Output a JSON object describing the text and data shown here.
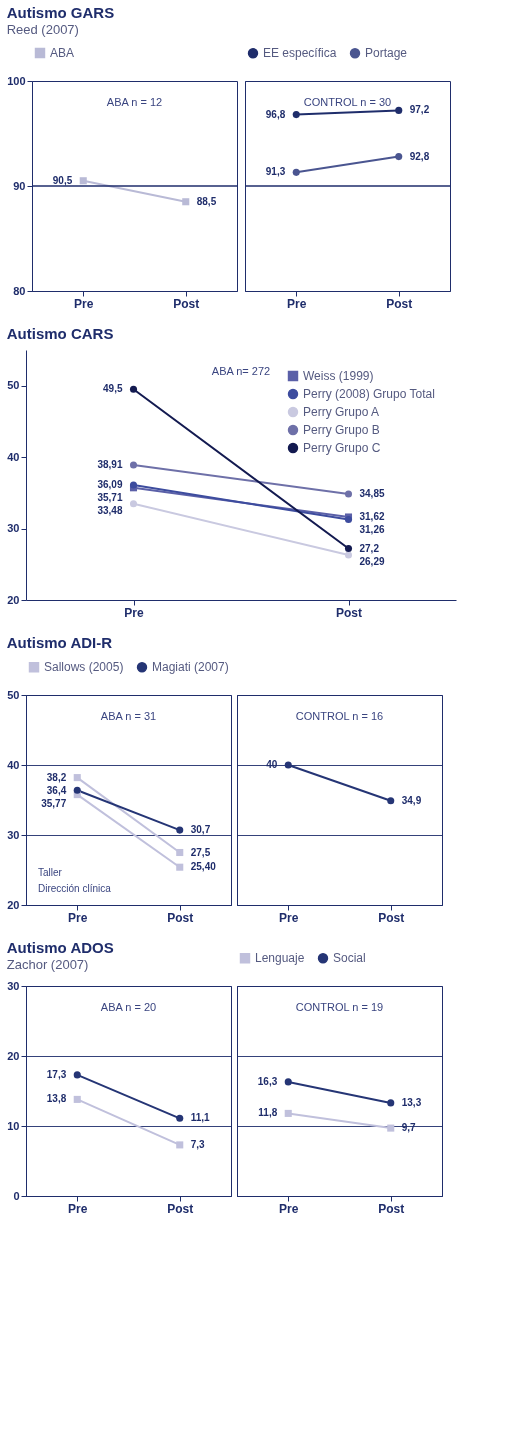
{
  "chart_data": [
    {
      "type": "line",
      "title": "Autismo GARS",
      "subtitle": "Reed (2007)",
      "categories": [
        "Pre",
        "Post"
      ],
      "ylim": [
        80,
        100
      ],
      "yticks": [
        80,
        90,
        100
      ],
      "ref_lines": [
        {
          "axis": "y",
          "value": 90
        }
      ],
      "legend": "top",
      "annotations": [
        "ABA n = 12"
      ],
      "series": [
        {
          "name": "ABA",
          "color": "#b9bad6",
          "marker": "square",
          "values": [
            90.5,
            88.5
          ],
          "value_labels": [
            "90,5",
            "88,5"
          ]
        }
      ]
    },
    {
      "type": "line",
      "categories": [
        "Pre",
        "Post"
      ],
      "ylim": [
        80,
        100
      ],
      "yticks": [
        80,
        90,
        100
      ],
      "ref_lines": [
        {
          "axis": "y",
          "value": 90
        }
      ],
      "legend": "top",
      "tick_labels": "x",
      "annotations": [
        "CONTROL n = 30"
      ],
      "series": [
        {
          "name": "EE específica",
          "color": "#1f2d6b",
          "marker": "circle",
          "values": [
            96.8,
            97.2
          ],
          "value_labels": [
            "96,8",
            "97,2"
          ]
        },
        {
          "name": "Portage",
          "color": "#4a5590",
          "marker": "circle",
          "values": [
            91.3,
            92.8
          ],
          "value_labels": [
            "91,3",
            "92,8"
          ]
        }
      ]
    },
    {
      "type": "line",
      "title": "Autismo CARS",
      "categories": [
        "Pre",
        "Post"
      ],
      "ylim": [
        20,
        55
      ],
      "yticks": [
        20,
        30,
        40,
        50
      ],
      "legend": "top right",
      "annotations": [
        "ABA n= 272"
      ],
      "series": [
        {
          "name": "Weiss (1999)",
          "color": "#5b60a8",
          "marker": "square",
          "values": [
            35.71,
            31.62
          ],
          "value_labels": [
            "35,71",
            "31,62"
          ]
        },
        {
          "name": "Perry (2008) Grupo Total",
          "color": "#3d4c9e",
          "marker": "circle",
          "values": [
            36.09,
            31.26
          ],
          "value_labels": [
            "36,09",
            "31,26"
          ]
        },
        {
          "name": "Perry Grupo A",
          "color": "#c9c9e0",
          "marker": "circle",
          "values": [
            33.48,
            26.29
          ],
          "value_labels": [
            "33,48",
            "26,29"
          ]
        },
        {
          "name": "Perry Grupo B",
          "color": "#6e70a8",
          "marker": "circle",
          "values": [
            38.91,
            34.85
          ],
          "value_labels": [
            "38,91",
            "34,85"
          ]
        },
        {
          "name": "Perry Grupo C",
          "color": "#131a50",
          "marker": "circle",
          "values": [
            49.5,
            27.2
          ],
          "value_labels": [
            "49,5",
            "27,2"
          ]
        }
      ]
    },
    {
      "type": "line",
      "title": "Autismo ADI-R",
      "categories": [
        "Pre",
        "Post"
      ],
      "ylim": [
        20,
        50
      ],
      "yticks": [
        20,
        30,
        40,
        50
      ],
      "grid": "y",
      "legend": "top",
      "annotations": [
        "ABA n = 31",
        "Taller",
        "Dirección clínica"
      ],
      "series": [
        {
          "name": "Sallows (2005)",
          "color": "#c0c0dc",
          "marker": "square",
          "values": [
            38.2,
            27.5
          ],
          "value_labels": [
            "38,2",
            "27,5"
          ]
        },
        {
          "color": "#c0c0dc",
          "marker": "square",
          "values": [
            35.77,
            25.4
          ],
          "value_labels": [
            "35,77",
            "25,40"
          ]
        },
        {
          "name": "Magiati (2007)",
          "color": "#253575",
          "marker": "circle",
          "values": [
            36.4,
            30.7
          ],
          "value_labels": [
            "36,4",
            "30,7"
          ]
        }
      ]
    },
    {
      "type": "line",
      "categories": [
        "Pre",
        "Post"
      ],
      "ylim": [
        20,
        50
      ],
      "yticks": [
        20,
        30,
        40,
        50
      ],
      "grid": "y",
      "tick_labels": "x",
      "annotations": [
        "CONTROL n = 16"
      ],
      "series": [
        {
          "color": "#253575",
          "marker": "circle",
          "values": [
            40,
            34.9
          ],
          "value_labels": [
            "40",
            "34,9"
          ]
        }
      ]
    },
    {
      "type": "line",
      "title": "Autismo ADOS",
      "subtitle": "Zachor (2007)",
      "categories": [
        "Pre",
        "Post"
      ],
      "ylim": [
        0,
        30
      ],
      "yticks": [
        0,
        10,
        20,
        30
      ],
      "grid": "y",
      "annotations": [
        "ABA n = 20"
      ],
      "series": [
        {
          "color": "#c0c0dc",
          "marker": "square",
          "values": [
            13.8,
            7.3
          ],
          "value_labels": [
            "13,8",
            "7,3"
          ]
        },
        {
          "color": "#253575",
          "marker": "circle",
          "values": [
            17.3,
            11.1
          ],
          "value_labels": [
            "17,3",
            "11,1"
          ]
        }
      ]
    },
    {
      "type": "line",
      "categories": [
        "Pre",
        "Post"
      ],
      "ylim": [
        0,
        30
      ],
      "yticks": [
        0,
        10,
        20,
        30
      ],
      "grid": "y",
      "legend": "top",
      "tick_labels": "x",
      "annotations": [
        "CONTROL n = 19"
      ],
      "series": [
        {
          "name": "Lenguaje",
          "color": "#c0c0dc",
          "marker": "square",
          "values": [
            11.8,
            9.7
          ],
          "value_labels": [
            "11,8",
            "9,7"
          ]
        },
        {
          "name": "Social",
          "color": "#253575",
          "marker": "circle",
          "values": [
            16.3,
            13.3
          ],
          "value_labels": [
            "16,3",
            "13,3"
          ]
        }
      ]
    }
  ]
}
